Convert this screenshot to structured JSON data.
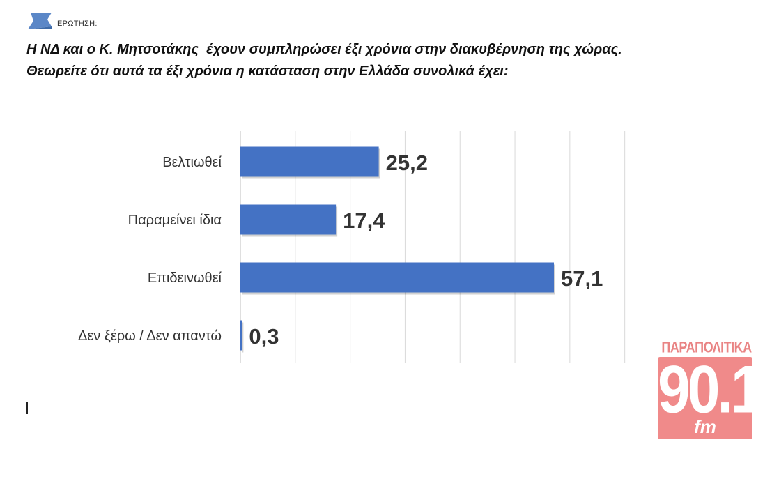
{
  "header": {
    "label": "ΕΡΩΤΗΣΗ:",
    "icon": "question-flag-icon"
  },
  "question": {
    "line1": "Η ΝΔ και ο Κ. Μητσοτάκης  έχουν συμπληρώσει έξι χρόνια στην διακυβέρνηση της χώρας.",
    "line2": "Θεωρείτε ότι αυτά τα έξι χρόνια η κατάσταση στην Ελλάδα συνολικά έχει:"
  },
  "chart_data": {
    "type": "bar",
    "orientation": "horizontal",
    "categories": [
      "Βελτιωθεί",
      "Παραμείνει ίδια",
      "Επιδεινωθεί",
      "Δεν ξέρω / Δεν απαντώ"
    ],
    "values": [
      25.2,
      17.4,
      57.1,
      0.3
    ],
    "value_labels": [
      "25,2",
      "17,4",
      "57,1",
      "0,3"
    ],
    "xlim": [
      0,
      70
    ],
    "grid": true,
    "bar_color": "#4472c4"
  },
  "logo": {
    "top_text": "ΠΑΡΑΠΟΛΙΤΙΚΑ",
    "number": "90.1",
    "suffix": "fm",
    "color": "#f08a8a"
  }
}
